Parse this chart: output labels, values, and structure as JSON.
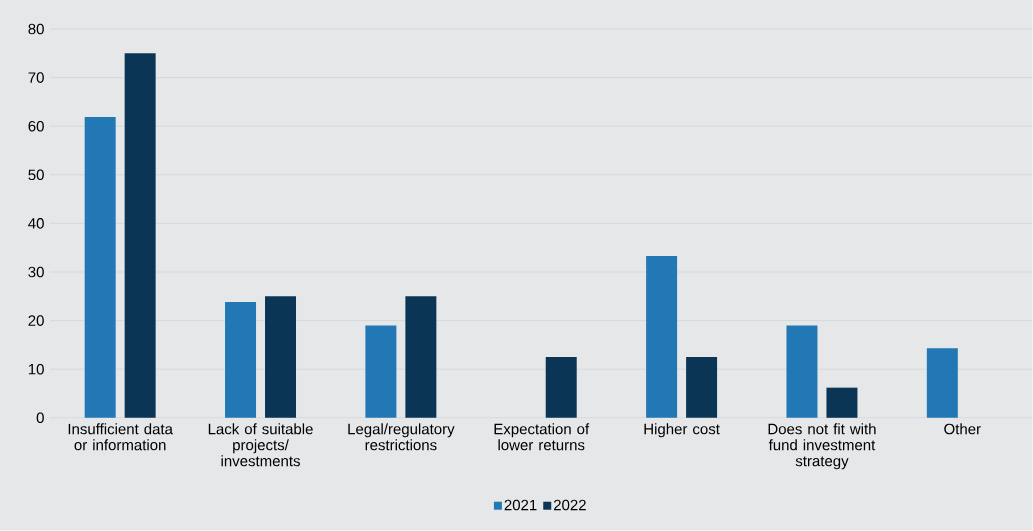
{
  "chart_data": {
    "type": "bar",
    "categories": [
      "Insufficient data or information",
      "Lack of suitable projects/ investments",
      "Legal/regulatory restrictions",
      "Expectation of lower returns",
      "Higher cost",
      "Does not fit with fund investment strategy",
      "Other"
    ],
    "series": [
      {
        "name": "2021",
        "color": "#2178b4",
        "values": [
          61.9,
          23.8,
          19,
          null,
          33.3,
          19,
          14.3
        ]
      },
      {
        "name": "2022",
        "color": "#0b3555",
        "values": [
          75,
          25,
          25,
          12.5,
          12.5,
          6.2,
          null
        ]
      }
    ],
    "ylim": [
      0,
      80
    ],
    "yticks": [
      0,
      10,
      20,
      30,
      40,
      50,
      60,
      70,
      80
    ],
    "grid": "y",
    "legend": "bottom"
  }
}
